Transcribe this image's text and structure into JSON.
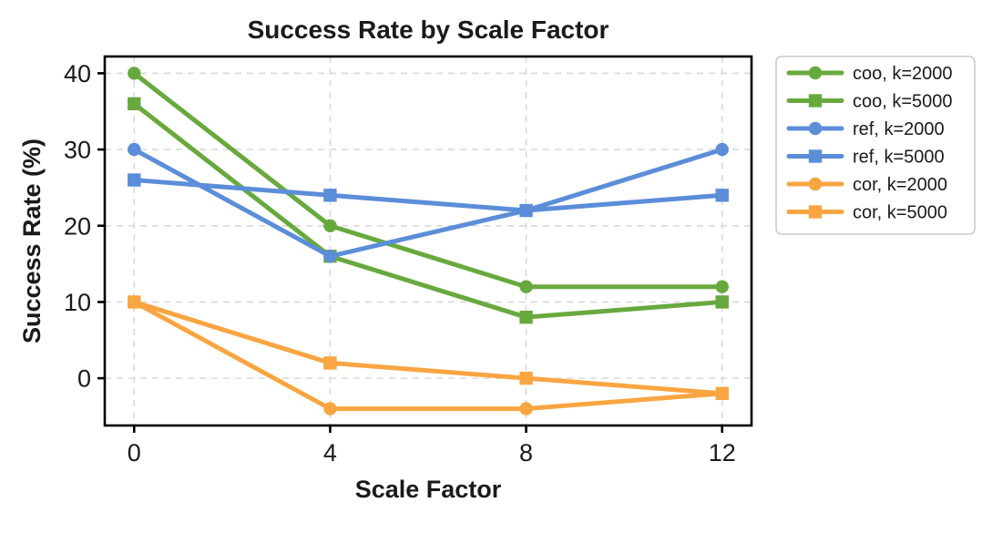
{
  "chart_data": {
    "type": "line",
    "title": "Success Rate by Scale Factor",
    "xlabel": "Scale Factor",
    "ylabel": "Success Rate (%)",
    "x": [
      0,
      4,
      8,
      12
    ],
    "xticks": [
      "0",
      "4",
      "8",
      "12"
    ],
    "xtick_values": [
      0,
      4,
      8,
      12
    ],
    "yticks": [
      "0",
      "10",
      "20",
      "30",
      "40"
    ],
    "ytick_values": [
      0,
      10,
      20,
      30,
      40
    ],
    "xlim": [
      -0.6,
      12.6
    ],
    "ylim": [
      -6.2,
      42.2
    ],
    "grid": true,
    "grid_style": "dashed",
    "legend_position": "outside-right",
    "series": [
      {
        "name": "coo, k=2000",
        "color": "#68a93e",
        "marker": "circle",
        "values": [
          40,
          20,
          12,
          12
        ]
      },
      {
        "name": "coo, k=5000",
        "color": "#68a93e",
        "marker": "square",
        "values": [
          36,
          16,
          8,
          10
        ]
      },
      {
        "name": "ref, k=2000",
        "color": "#5b8dd9",
        "marker": "circle",
        "values": [
          30,
          16,
          22,
          30
        ]
      },
      {
        "name": "ref, k=5000",
        "color": "#5b8dd9",
        "marker": "square",
        "values": [
          26,
          24,
          22,
          24
        ]
      },
      {
        "name": "cor, k=2000",
        "color": "#f8a542",
        "marker": "circle",
        "values": [
          10,
          -4,
          -4,
          -2
        ]
      },
      {
        "name": "cor, k=5000",
        "color": "#f8a542",
        "marker": "square",
        "values": [
          10,
          2,
          0,
          -2
        ]
      }
    ],
    "colors": {
      "text": "#1a1a1a",
      "spine": "#000000",
      "grid": "#d9d9d9",
      "legend_border": "#cccccc",
      "background": "#ffffff"
    }
  }
}
